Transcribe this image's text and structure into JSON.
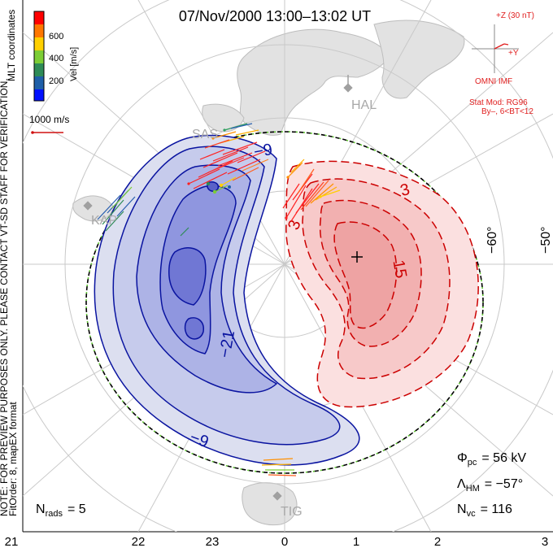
{
  "header": {
    "title": "07/Nov/2000 13:00–13:02 UT"
  },
  "left_notes": {
    "coords": "MLT coordinates",
    "note": "NOTE: FOR PREVIEW PURPOSES ONLY. PLEASE CONTACT VT-SD STAFF FOR VERIFICATION.",
    "fitorder": "FitOrder: 8, mapEX format"
  },
  "velocity_scale": {
    "label": "Vel [m/s]",
    "ticks": [
      "600",
      "400",
      "200"
    ],
    "colors": [
      "#ff0000",
      "#ff7700",
      "#ffd000",
      "#7ccd35",
      "#2e8b57",
      "#1f5fa8",
      "#0010ff"
    ]
  },
  "reference_vector": {
    "label": "1000 m/s",
    "color": "#d01010"
  },
  "imf": {
    "z_label": "+Z (30 nT)",
    "y_label": "+Y",
    "source": "OMNI IMF",
    "model": "Stat Mod: RG96",
    "condition": "By–, 6<BT<12",
    "color": "#e02020"
  },
  "stations": {
    "hal": "HAL",
    "sas": "SAS",
    "kap": "KAP",
    "tig": "TIG"
  },
  "latitudes": {
    "lat60": "−60°",
    "lat50": "−50°"
  },
  "contours": {
    "neg_color": "#0a14a0",
    "pos_color": "#cc0000",
    "labels": {
      "n9_top": "−9",
      "n21": "−21",
      "n9_bottom": "−9",
      "p3_left": "3",
      "p3_top": "3",
      "p15": "15"
    }
  },
  "stats": {
    "phi_symbol": "Φ",
    "phi_sub": "pc",
    "phi_value": "=  56 kV",
    "lambda_symbol": "Λ",
    "lambda_sub": "HM",
    "lambda_value": "=  −57°",
    "nvc_symbol": "N",
    "nvc_sub": "vc",
    "nvc_value": "=  116",
    "nrads_symbol": "N",
    "nrads_sub": "rads",
    "nrads_value": "=  5"
  },
  "mlt_axis": {
    "ticks": [
      "21",
      "22",
      "23",
      "0",
      "1",
      "2",
      "3"
    ]
  }
}
